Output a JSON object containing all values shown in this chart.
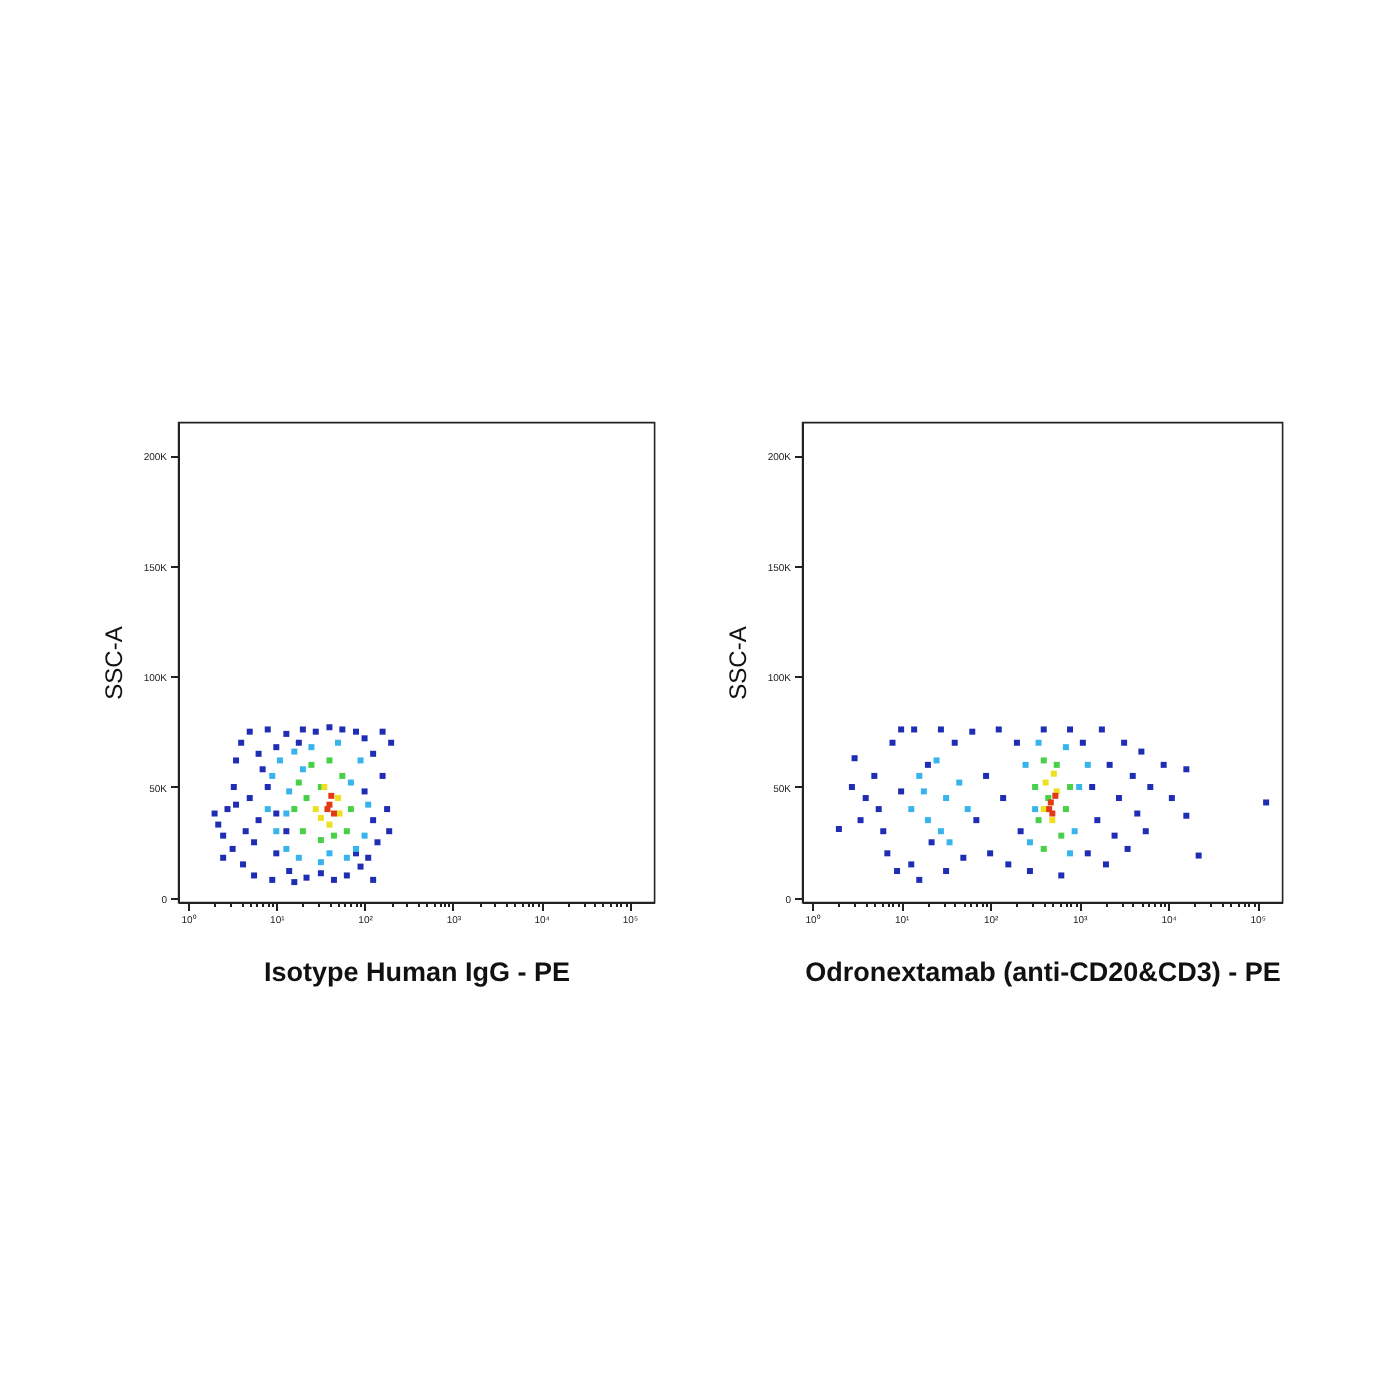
{
  "chart_data": [
    {
      "type": "scatter",
      "xlabel": "Isotype Human IgG - PE",
      "ylabel": "SSC-A",
      "log": "x",
      "marker": "square",
      "xlim": [
        0.77,
        190000
      ],
      "ylim": [
        -2000,
        215000
      ],
      "xticks": [
        {
          "value": 1,
          "label": "10⁰"
        },
        {
          "value": 2,
          "label": null
        },
        {
          "value": 3,
          "label": null
        },
        {
          "value": 4,
          "label": null
        },
        {
          "value": 5,
          "label": null
        },
        {
          "value": 6,
          "label": null
        },
        {
          "value": 7,
          "label": null
        },
        {
          "value": 8,
          "label": null
        },
        {
          "value": 9,
          "label": null
        },
        {
          "value": 10,
          "label": "10¹"
        },
        {
          "value": 20,
          "label": null
        },
        {
          "value": 30,
          "label": null
        },
        {
          "value": 40,
          "label": null
        },
        {
          "value": 50,
          "label": null
        },
        {
          "value": 60,
          "label": null
        },
        {
          "value": 70,
          "label": null
        },
        {
          "value": 80,
          "label": null
        },
        {
          "value": 90,
          "label": null
        },
        {
          "value": 100,
          "label": "10²"
        },
        {
          "value": 200,
          "label": null
        },
        {
          "value": 300,
          "label": null
        },
        {
          "value": 400,
          "label": null
        },
        {
          "value": 500,
          "label": null
        },
        {
          "value": 600,
          "label": null
        },
        {
          "value": 700,
          "label": null
        },
        {
          "value": 800,
          "label": null
        },
        {
          "value": 900,
          "label": null
        },
        {
          "value": 1000,
          "label": "10³"
        },
        {
          "value": 2000,
          "label": null
        },
        {
          "value": 3000,
          "label": null
        },
        {
          "value": 4000,
          "label": null
        },
        {
          "value": 5000,
          "label": null
        },
        {
          "value": 6000,
          "label": null
        },
        {
          "value": 7000,
          "label": null
        },
        {
          "value": 8000,
          "label": null
        },
        {
          "value": 9000,
          "label": null
        },
        {
          "value": 10000,
          "label": "10⁴"
        },
        {
          "value": 20000,
          "label": null
        },
        {
          "value": 30000,
          "label": null
        },
        {
          "value": 40000,
          "label": null
        },
        {
          "value": 50000,
          "label": null
        },
        {
          "value": 60000,
          "label": null
        },
        {
          "value": 70000,
          "label": null
        },
        {
          "value": 80000,
          "label": null
        },
        {
          "value": 90000,
          "label": null
        },
        {
          "value": 100000,
          "label": "10⁵"
        }
      ],
      "yticks": [
        0,
        {
          "value": 50000,
          "label": "50K"
        },
        {
          "value": 100000,
          "label": "100K"
        },
        {
          "value": 150000,
          "label": "150K"
        },
        {
          "value": 200000,
          "label": "200K"
        }
      ],
      "series": [
        {
          "color": "#1f2db4",
          "x": [
            2.2,
            2.5,
            2.8,
            3.2,
            3.3,
            3.5,
            4,
            4.2,
            5,
            5,
            5.6,
            6.3,
            7,
            8,
            9,
            10,
            10,
            13,
            14,
            16,
            20,
            22,
            28,
            32,
            40,
            45,
            56,
            63,
            80,
            90,
            100,
            110,
            125,
            140,
            160,
            180,
            200,
            190,
            160,
            125,
            4.5,
            8,
            100,
            13,
            3.5,
            2,
            10,
            125,
            18,
            80,
            5.6,
            6.3,
            2.5
          ],
          "values": [
            33000,
            28000,
            40000,
            22000,
            50000,
            62000,
            70000,
            15000,
            75000,
            45000,
            10000,
            35000,
            58000,
            76000,
            8000,
            20000,
            68000,
            74000,
            12000,
            7000,
            76000,
            9000,
            75000,
            11000,
            77000,
            8000,
            76000,
            10000,
            75000,
            14000,
            72000,
            18000,
            65000,
            25000,
            55000,
            40000,
            70000,
            30000,
            75000,
            8000,
            30000,
            50000,
            48000,
            30000,
            42000,
            38000,
            38000,
            35000,
            70000,
            20000,
            25000,
            65000,
            18000
          ]
        },
        {
          "color": "#38b4ec",
          "x": [
            8,
            9,
            10,
            11,
            13,
            14,
            16,
            18,
            25,
            32,
            50,
            63,
            90,
            100,
            110,
            80,
            13,
            20,
            70,
            40
          ],
          "values": [
            40000,
            55000,
            30000,
            62000,
            22000,
            48000,
            66000,
            18000,
            68000,
            16000,
            70000,
            18000,
            62000,
            28000,
            42000,
            22000,
            38000,
            58000,
            52000,
            20000
          ]
        },
        {
          "color": "#48d048",
          "x": [
            16,
            18,
            20,
            25,
            32,
            40,
            56,
            70,
            63,
            22,
            32,
            45
          ],
          "values": [
            40000,
            52000,
            30000,
            60000,
            26000,
            62000,
            55000,
            40000,
            30000,
            45000,
            50000,
            28000
          ]
        },
        {
          "color": "#ece020",
          "x": [
            28,
            35,
            50,
            40,
            32,
            52
          ],
          "values": [
            40000,
            50000,
            45000,
            33000,
            36000,
            38000
          ]
        },
        {
          "color": "#e23a14",
          "x": [
            40,
            45,
            42,
            38
          ],
          "values": [
            42000,
            38000,
            46000,
            40000
          ]
        }
      ]
    },
    {
      "type": "scatter",
      "xlabel": "Odronextamab (anti-CD20&CD3) - PE",
      "ylabel": "SSC-A",
      "log": "x",
      "marker": "square",
      "xlim": [
        0.77,
        190000
      ],
      "ylim": [
        -2000,
        215000
      ],
      "xticks": [
        {
          "value": 1,
          "label": "10⁰"
        },
        {
          "value": 2,
          "label": null
        },
        {
          "value": 3,
          "label": null
        },
        {
          "value": 4,
          "label": null
        },
        {
          "value": 5,
          "label": null
        },
        {
          "value": 6,
          "label": null
        },
        {
          "value": 7,
          "label": null
        },
        {
          "value": 8,
          "label": null
        },
        {
          "value": 9,
          "label": null
        },
        {
          "value": 10,
          "label": "10¹"
        },
        {
          "value": 20,
          "label": null
        },
        {
          "value": 30,
          "label": null
        },
        {
          "value": 40,
          "label": null
        },
        {
          "value": 50,
          "label": null
        },
        {
          "value": 60,
          "label": null
        },
        {
          "value": 70,
          "label": null
        },
        {
          "value": 80,
          "label": null
        },
        {
          "value": 90,
          "label": null
        },
        {
          "value": 100,
          "label": "10²"
        },
        {
          "value": 200,
          "label": null
        },
        {
          "value": 300,
          "label": null
        },
        {
          "value": 400,
          "label": null
        },
        {
          "value": 500,
          "label": null
        },
        {
          "value": 600,
          "label": null
        },
        {
          "value": 700,
          "label": null
        },
        {
          "value": 800,
          "label": null
        },
        {
          "value": 900,
          "label": null
        },
        {
          "value": 1000,
          "label": "10³"
        },
        {
          "value": 2000,
          "label": null
        },
        {
          "value": 3000,
          "label": null
        },
        {
          "value": 4000,
          "label": null
        },
        {
          "value": 5000,
          "label": null
        },
        {
          "value": 6000,
          "label": null
        },
        {
          "value": 7000,
          "label": null
        },
        {
          "value": 8000,
          "label": null
        },
        {
          "value": 9000,
          "label": null
        },
        {
          "value": 10000,
          "label": "10⁴"
        },
        {
          "value": 20000,
          "label": null
        },
        {
          "value": 30000,
          "label": null
        },
        {
          "value": 40000,
          "label": null
        },
        {
          "value": 50000,
          "label": null
        },
        {
          "value": 60000,
          "label": null
        },
        {
          "value": 70000,
          "label": null
        },
        {
          "value": 80000,
          "label": null
        },
        {
          "value": 90000,
          "label": null
        },
        {
          "value": 100000,
          "label": "10⁵"
        }
      ],
      "yticks": [
        0,
        {
          "value": 50000,
          "label": "50K"
        },
        {
          "value": 100000,
          "label": "100K"
        },
        {
          "value": 150000,
          "label": "150K"
        },
        {
          "value": 200000,
          "label": "200K"
        }
      ],
      "series": [
        {
          "color": "#1f2db4",
          "x": [
            5,
            5.6,
            6.3,
            7,
            8,
            9,
            10,
            10,
            13,
            14,
            16,
            20,
            22,
            28,
            32,
            40,
            50,
            63,
            70,
            90,
            100,
            125,
            140,
            160,
            200,
            220,
            400,
            790,
            1100,
            1250,
            1400,
            1600,
            1800,
            2000,
            2200,
            2500,
            2800,
            3200,
            3500,
            4000,
            4500,
            5000,
            5600,
            6300,
            280,
            630,
            4,
            3.5,
            2,
            2.8,
            3,
            16000,
            16000,
            22000,
            126000,
            8900,
            11000
          ],
          "values": [
            55000,
            40000,
            30000,
            20000,
            70000,
            12000,
            76000,
            48000,
            15000,
            76000,
            8000,
            60000,
            25000,
            76000,
            12000,
            70000,
            18000,
            75000,
            35000,
            55000,
            20000,
            76000,
            45000,
            15000,
            70000,
            30000,
            76000,
            76000,
            70000,
            20000,
            50000,
            35000,
            76000,
            15000,
            60000,
            28000,
            45000,
            70000,
            22000,
            55000,
            38000,
            66000,
            30000,
            50000,
            12000,
            10000,
            45000,
            35000,
            31000,
            50000,
            63000,
            58000,
            37000,
            19000,
            43000,
            60000,
            45000
          ]
        },
        {
          "color": "#38b4ec",
          "x": [
            13,
            16,
            20,
            25,
            32,
            35,
            45,
            56,
            28,
            18,
            250,
            280,
            350,
            710,
            890,
            1000,
            320,
            790,
            1250
          ],
          "values": [
            40000,
            55000,
            35000,
            62000,
            45000,
            25000,
            52000,
            40000,
            30000,
            48000,
            60000,
            25000,
            70000,
            68000,
            30000,
            50000,
            40000,
            20000,
            60000
          ]
        },
        {
          "color": "#48d048",
          "x": [
            320,
            350,
            400,
            560,
            710,
            630,
            400,
            790,
            450
          ],
          "values": [
            50000,
            35000,
            62000,
            60000,
            40000,
            28000,
            22000,
            50000,
            45000
          ]
        },
        {
          "color": "#ece020",
          "x": [
            420,
            500,
            560,
            400,
            520
          ],
          "values": [
            52000,
            35000,
            48000,
            40000,
            56000
          ]
        },
        {
          "color": "#e23a14",
          "x": [
            480,
            500,
            540,
            460
          ],
          "values": [
            43000,
            38000,
            46000,
            40000
          ]
        }
      ]
    }
  ]
}
